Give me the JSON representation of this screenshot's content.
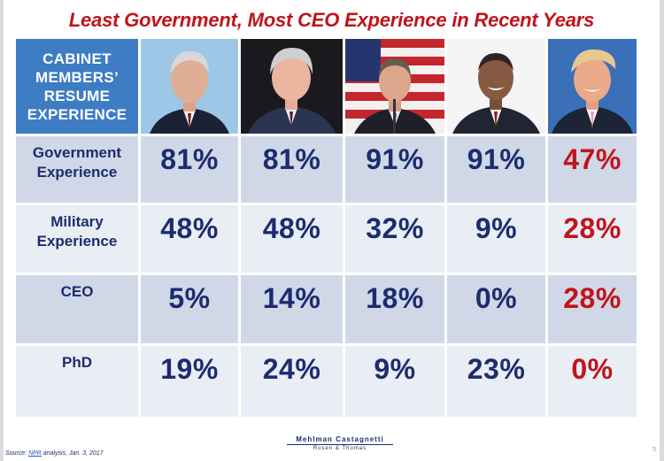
{
  "title": "Least Government, Most CEO Experience in Recent Years",
  "header": {
    "lines": [
      "CABINET",
      "MEMBERS’",
      "RESUME",
      "EXPERIENCE"
    ]
  },
  "colors": {
    "title": "#c0141b",
    "header_bg": "#3e7cc4",
    "value_blue": "#1c2c6e",
    "value_red": "#c0141b",
    "row_dark": "#d0d8e8",
    "row_light": "#e9edf4"
  },
  "chart_data": {
    "type": "table",
    "columns": [
      {
        "photo": "president-1-portrait-photo",
        "highlight": false
      },
      {
        "photo": "president-2-portrait-photo",
        "highlight": false
      },
      {
        "photo": "president-3-portrait-photo",
        "highlight": false
      },
      {
        "photo": "president-4-portrait-photo",
        "highlight": false
      },
      {
        "photo": "president-5-portrait-photo",
        "highlight": true
      }
    ],
    "rows": [
      {
        "label": [
          "Government",
          "Experience"
        ],
        "values": [
          "81%",
          "81%",
          "91%",
          "91%",
          "47%"
        ]
      },
      {
        "label": [
          "Military",
          "Experience"
        ],
        "values": [
          "48%",
          "48%",
          "32%",
          "9%",
          "28%"
        ]
      },
      {
        "label": [
          "CEO"
        ],
        "values": [
          "5%",
          "14%",
          "18%",
          "0%",
          "28%"
        ]
      },
      {
        "label": [
          "PhD"
        ],
        "values": [
          "19%",
          "24%",
          "9%",
          "23%",
          "0%"
        ]
      }
    ]
  },
  "logo": {
    "line1": "Mehlman Castagnetti",
    "line2": "Rosen & Thomas"
  },
  "source": {
    "prefix": "Source: ",
    "link": "NPR",
    "suffix": " analysis, Jan. 3, 2017"
  },
  "page_number": "5"
}
